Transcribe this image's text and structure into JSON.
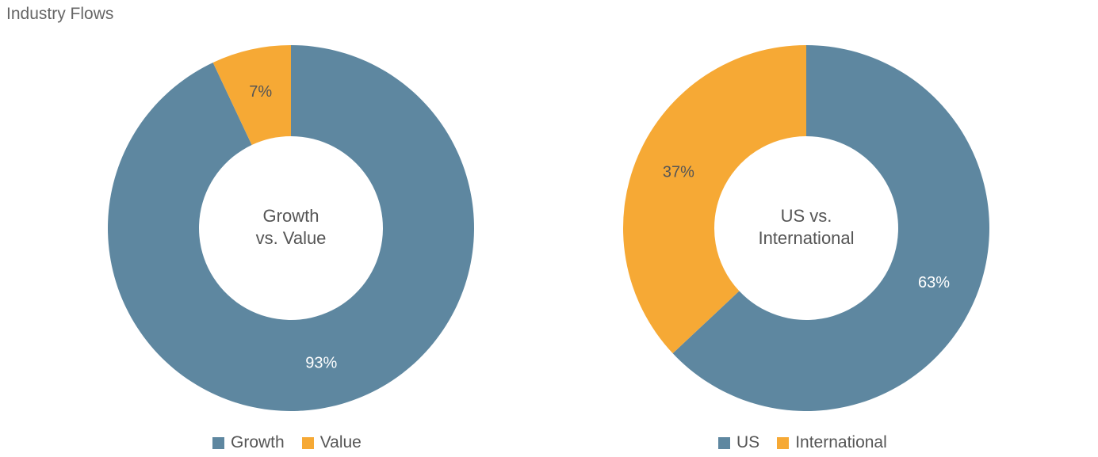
{
  "header": {
    "title": "Industry Flows"
  },
  "colors": {
    "primary": "#5e87a0",
    "accent": "#f6a935"
  },
  "chart_data": [
    {
      "type": "pie",
      "variant": "donut",
      "center_label": [
        "Growth",
        "vs. Value"
      ],
      "slices": [
        {
          "label": "Growth",
          "value": 93,
          "value_label": "93%",
          "color": "#5e87a0"
        },
        {
          "label": "Value",
          "value": 7,
          "value_label": "7%",
          "color": "#f6a935"
        }
      ],
      "legend": [
        "Growth",
        "Value"
      ],
      "legend_position": "bottom"
    },
    {
      "type": "pie",
      "variant": "donut",
      "center_label": [
        "US vs.",
        "International"
      ],
      "slices": [
        {
          "label": "US",
          "value": 63,
          "value_label": "63%",
          "color": "#5e87a0"
        },
        {
          "label": "International",
          "value": 37,
          "value_label": "37%",
          "color": "#f6a935"
        }
      ],
      "legend": [
        "US",
        "International"
      ],
      "legend_position": "bottom"
    }
  ]
}
